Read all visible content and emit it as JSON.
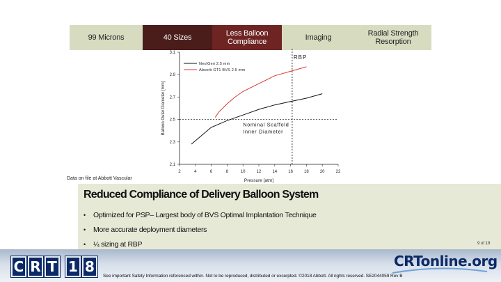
{
  "tabs": [
    {
      "label": "99 Microns"
    },
    {
      "label": "40 Sizes"
    },
    {
      "label": "Less Balloon Compliance"
    },
    {
      "label": "Imaging"
    },
    {
      "label": "Radial Strength Resorption"
    }
  ],
  "chart_data": {
    "type": "line",
    "ylabel": "Balloon Outer Diameter [mm]",
    "xlabel": "Pressure [atm]",
    "xlim": [
      2,
      22
    ],
    "ylim": [
      2.1,
      3.1
    ],
    "x_ticks": [
      "2",
      "4",
      "6",
      "8",
      "10",
      "12",
      "14",
      "16",
      "18",
      "20",
      "22"
    ],
    "y_ticks": [
      "3.1",
      "2.9",
      "2.7",
      "2.5",
      "2.3",
      "2.1"
    ],
    "series": [
      {
        "name": "NextGen 2.5 mm",
        "color": "#111111",
        "x": [
          3.5,
          5,
          6,
          8,
          10,
          12,
          14,
          16,
          18,
          20,
          20
        ],
        "y": [
          2.28,
          2.37,
          2.43,
          2.49,
          2.54,
          2.59,
          2.63,
          2.66,
          2.69,
          2.73,
          2.73
        ]
      },
      {
        "name": "Absorb GT1 BVS 2.5 mm",
        "color": "#d63a3a",
        "x": [
          6.5,
          7,
          8,
          9,
          10,
          12,
          14,
          16,
          18
        ],
        "y": [
          2.52,
          2.57,
          2.64,
          2.7,
          2.75,
          2.82,
          2.89,
          2.93,
          2.97
        ]
      }
    ],
    "annotations": {
      "rbp_label": "RBP",
      "rbp_x": 16.2,
      "nominal_label_line1": "Nominal Scaffold",
      "nominal_label_line2": "Inner Diameter",
      "nominal_y": 2.5
    },
    "legend": "top-left"
  },
  "source_note": "Data on file at Abbott Vascular",
  "panel": {
    "title": "Reduced Compliance of Delivery Balloon System",
    "bullets": [
      "Optimized for PSP– Largest body of BVS Optimal Implantation Technique",
      "More accurate deployment diameters",
      "¼ sizing at RBP"
    ]
  },
  "page_number": "9 of 19",
  "footer": {
    "crt_letters": [
      "C",
      "R",
      "T",
      "1",
      "8"
    ],
    "brand": "CRTonline.org",
    "disclaimer": "See important Safety Information referenced within. Not to be reproduced, distributed or excerpted. ©2018 Abbott. All rights reserved. SE2044059 Rev B"
  }
}
